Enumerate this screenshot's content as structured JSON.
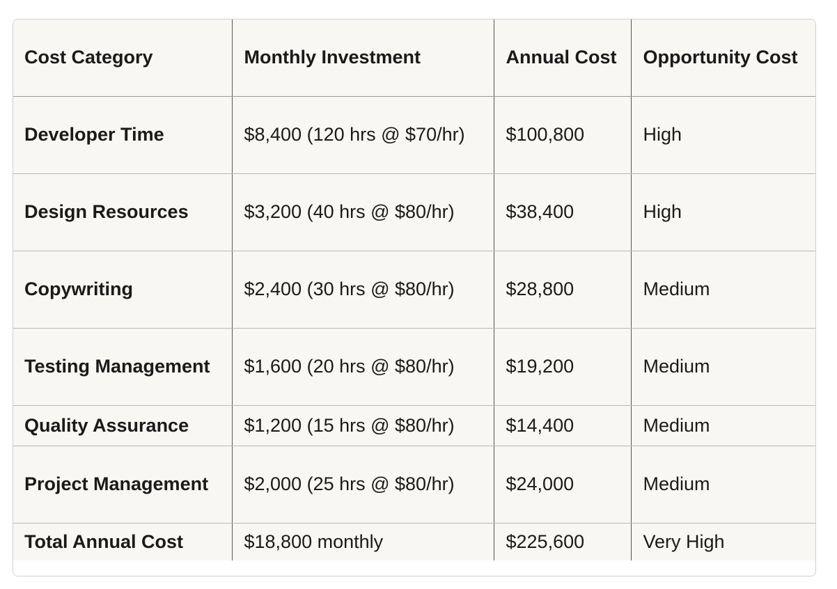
{
  "table": {
    "headers": [
      "Cost Category",
      "Monthly Investment",
      "Annual Cost",
      "Opportunity Cost"
    ],
    "rows": [
      {
        "category": "Developer Time",
        "monthly": "$8,400 (120 hrs @ $70/hr)",
        "annual": "$100,800",
        "opportunity": "High"
      },
      {
        "category": "Design Resources",
        "monthly": "$3,200 (40 hrs @ $80/hr)",
        "annual": "$38,400",
        "opportunity": "High"
      },
      {
        "category": "Copywriting",
        "monthly": "$2,400 (30 hrs @ $80/hr)",
        "annual": "$28,800",
        "opportunity": "Medium"
      },
      {
        "category": "Testing Management",
        "monthly": "$1,600 (20 hrs @ $80/hr)",
        "annual": "$19,200",
        "opportunity": "Medium"
      },
      {
        "category": "Quality Assurance",
        "monthly": "$1,200 (15 hrs @ $80/hr)",
        "annual": "$14,400",
        "opportunity": "Medium"
      },
      {
        "category": "Project Management",
        "monthly": "$2,000 (25 hrs @ $80/hr)",
        "annual": "$24,000",
        "opportunity": "Medium"
      },
      {
        "category": "Total Annual Cost",
        "monthly": "$18,800 monthly",
        "annual": "$225,600",
        "opportunity": "Very High"
      }
    ]
  }
}
